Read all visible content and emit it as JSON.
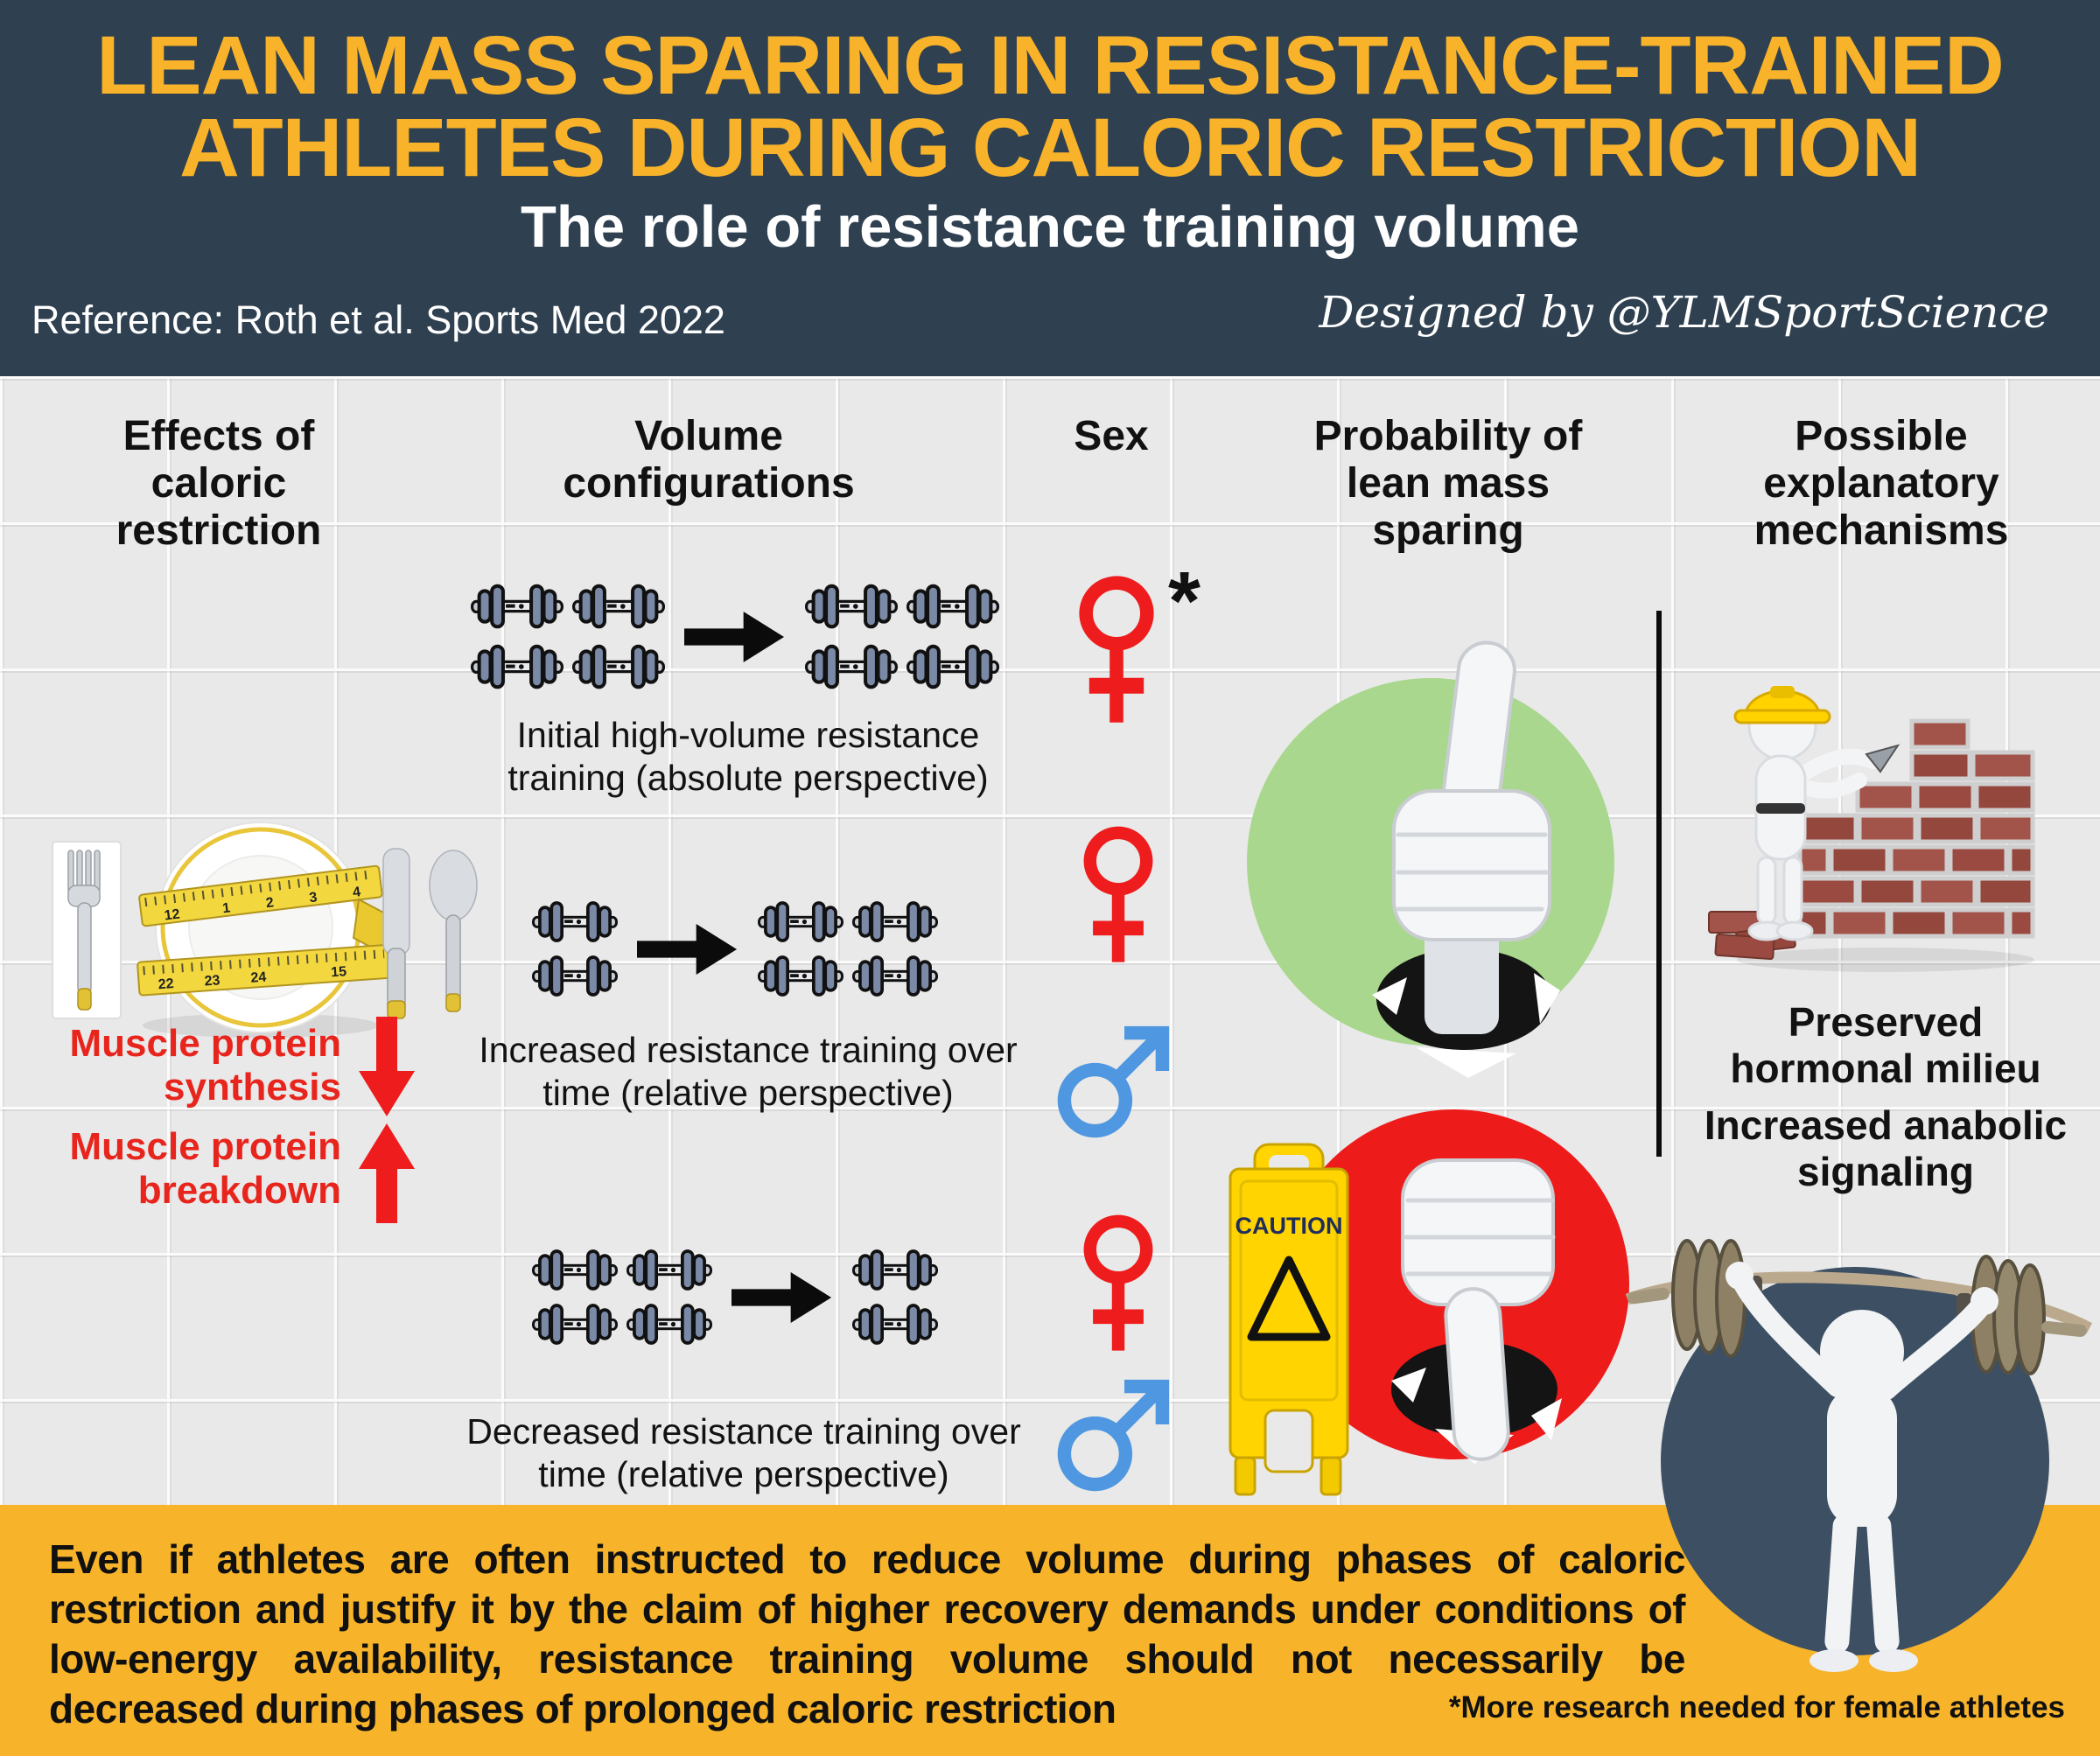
{
  "header": {
    "title_line1": "LEAN MASS SPARING IN RESISTANCE-TRAINED",
    "title_line2": "ATHLETES DURING CALORIC RESTRICTION",
    "subtitle": "The role of resistance training volume",
    "reference": "Reference: Roth et al. Sports Med 2022",
    "credit": "Designed by @YLMSportScience"
  },
  "columns": [
    {
      "label": "Effects of caloric restriction"
    },
    {
      "label": "Volume configurations"
    },
    {
      "label": "Sex"
    },
    {
      "label": "Probability of lean mass sparing"
    },
    {
      "label": "Possible explanatory mechanisms"
    }
  ],
  "effects": {
    "synthesis_label": "Muscle protein synthesis",
    "synthesis_direction": "down",
    "breakdown_label": "Muscle protein breakdown",
    "breakdown_direction": "up"
  },
  "volume_rows": [
    {
      "caption": "Initial high-volume resistance training (absolute perspective)",
      "dumbbells_before": 4,
      "dumbbells_after": 4,
      "sex_female": true,
      "sex_male": false,
      "asterisk": "*"
    },
    {
      "caption": "Increased resistance training over time (relative perspective)",
      "dumbbells_before": 2,
      "dumbbells_after": 4,
      "sex_female": true,
      "sex_male": true
    },
    {
      "caption": "Decreased resistance training over time (relative perspective)",
      "dumbbells_before": 4,
      "dumbbells_after": 2,
      "sex_female": true,
      "sex_male": true
    }
  ],
  "probability": {
    "positive_icon": "thumbs-up-in-green-circle",
    "negative_icon": "thumbs-down-in-red-circle",
    "caution_text": "CAUTION"
  },
  "mechanisms": {
    "item1": "Preserved hormonal milieu",
    "item2": "Increased anabolic signaling"
  },
  "banner": {
    "text": "Even if athletes are often instructed to reduce volume during phases of caloric restriction and justify it by the claim of higher recovery demands under conditions of low-energy availability, resistance training volume should not necessarily be decreased during phases of prolonged caloric restriction",
    "footnote": "*More research needed for female athletes"
  },
  "plate": {
    "tape_numbers": [
      "12",
      "1",
      "2",
      "3",
      "4",
      "22",
      "23",
      "24",
      "15"
    ]
  },
  "colors": {
    "header_bg": "#2f4050",
    "accent_orange": "#f8b32a",
    "red": "#ee1c1c",
    "male_blue": "#4f97e0",
    "green_circle": "#a9d78e",
    "red_circle": "#ee1b1b",
    "dark_circle": "#3d4f63",
    "dumbbell_plate": "#7a89a6"
  }
}
